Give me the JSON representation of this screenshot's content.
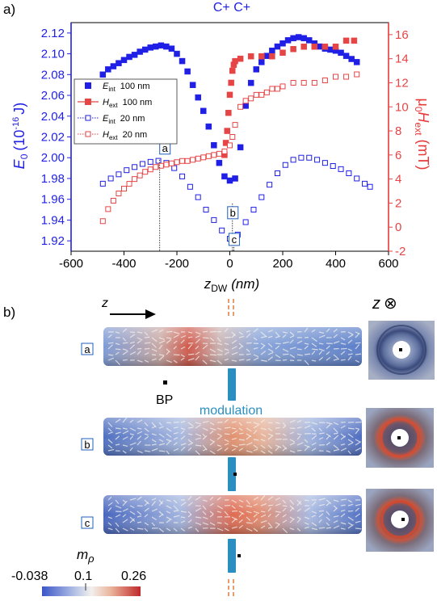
{
  "panel_a_label": "a)",
  "panel_b_label": "b)",
  "chart_data": {
    "type": "scatter",
    "title": "C+ C+",
    "xlabel_main": "z",
    "xlabel_sub": "DW",
    "xlabel_unit": "(nm)",
    "ylabel_left_main": "E",
    "ylabel_left_sub": "0",
    "ylabel_left_unit": "(10",
    "ylabel_left_exp": "-16",
    "ylabel_left_unit2": "J)",
    "ylabel_right_mu": "μ",
    "ylabel_right_sub0": "0",
    "ylabel_right_H": "H",
    "ylabel_right_sub": "ext",
    "ylabel_right_unit": "(mT)",
    "xlim": [
      -600,
      600
    ],
    "ylim_left": [
      1.91,
      2.13
    ],
    "ylim_right": [
      -2,
      17
    ],
    "xticks": [
      -600,
      -400,
      -200,
      0,
      200,
      400,
      600
    ],
    "yticks_left": [
      1.92,
      1.94,
      1.96,
      1.98,
      2.0,
      2.02,
      2.04,
      2.06,
      2.08,
      2.1,
      2.12
    ],
    "yticks_right": [
      -2,
      0,
      2,
      4,
      6,
      8,
      10,
      12,
      14,
      16
    ],
    "colors": {
      "blue": "#1f1fe6",
      "red": "#e64545",
      "axis_left": "#1f1fe6",
      "axis_right": "#e63a3a"
    },
    "legend": [
      {
        "sym": "E",
        "sub": "int",
        "size": "100 nm"
      },
      {
        "sym": "H",
        "sub": "ext",
        "size": "100 nm"
      },
      {
        "sym": "E",
        "sub": "int",
        "size": "20 nm"
      },
      {
        "sym": "H",
        "sub": "ext",
        "size": "20 nm"
      }
    ],
    "markers": [
      {
        "label": "a",
        "x": -265,
        "y": 1.998
      },
      {
        "label": "b",
        "x": 10,
        "y": 1.956
      },
      {
        "label": "c",
        "x": 15,
        "y": 1.921
      }
    ],
    "series": [
      {
        "name": "E_int 100 nm",
        "axis": "left",
        "style": "filled-square",
        "color": "blue",
        "points": [
          [
            -480,
            2.08
          ],
          [
            -460,
            2.085
          ],
          [
            -440,
            2.088
          ],
          [
            -420,
            2.091
          ],
          [
            -400,
            2.094
          ],
          [
            -380,
            2.097
          ],
          [
            -360,
            2.099
          ],
          [
            -340,
            2.102
          ],
          [
            -320,
            2.104
          ],
          [
            -300,
            2.106
          ],
          [
            -280,
            2.107
          ],
          [
            -260,
            2.108
          ],
          [
            -240,
            2.107
          ],
          [
            -220,
            2.105
          ],
          [
            -200,
            2.1
          ],
          [
            -180,
            2.093
          ],
          [
            -160,
            2.083
          ],
          [
            -140,
            2.07
          ],
          [
            -120,
            2.058
          ],
          [
            -100,
            2.045
          ],
          [
            -80,
            2.03
          ],
          [
            -60,
            2.012
          ],
          [
            -40,
            1.995
          ],
          [
            -20,
            1.982
          ],
          [
            0,
            1.978
          ],
          [
            20,
            1.98
          ],
          [
            40,
            2.01
          ],
          [
            60,
            2.05
          ],
          [
            80,
            2.072
          ],
          [
            100,
            2.085
          ],
          [
            120,
            2.092
          ],
          [
            140,
            2.098
          ],
          [
            160,
            2.103
          ],
          [
            180,
            2.107
          ],
          [
            200,
            2.11
          ],
          [
            220,
            2.113
          ],
          [
            240,
            2.115
          ],
          [
            260,
            2.116
          ],
          [
            280,
            2.115
          ],
          [
            300,
            2.113
          ],
          [
            320,
            2.11
          ],
          [
            340,
            2.107
          ],
          [
            360,
            2.105
          ],
          [
            380,
            2.104
          ],
          [
            400,
            2.103
          ],
          [
            420,
            2.101
          ],
          [
            440,
            2.098
          ],
          [
            460,
            2.095
          ],
          [
            480,
            2.092
          ]
        ]
      },
      {
        "name": "H_ext 100 nm",
        "axis": "right",
        "style": "filled-square",
        "color": "red",
        "points": [
          [
            -20,
            6.0
          ],
          [
            -15,
            7.0
          ],
          [
            -10,
            8.0
          ],
          [
            -5,
            9.5
          ],
          [
            0,
            11.0
          ],
          [
            5,
            12.0
          ],
          [
            10,
            13.0
          ],
          [
            15,
            13.5
          ],
          [
            20,
            13.8
          ],
          [
            40,
            14.0
          ],
          [
            80,
            14.2
          ],
          [
            120,
            14.2
          ],
          [
            160,
            14.2
          ],
          [
            200,
            14.5
          ],
          [
            240,
            14.8
          ],
          [
            280,
            15.0
          ],
          [
            320,
            15.0
          ],
          [
            360,
            15.0
          ],
          [
            400,
            15.0
          ],
          [
            440,
            15.5
          ],
          [
            470,
            15.5
          ]
        ]
      },
      {
        "name": "E_int 20 nm",
        "axis": "left",
        "style": "open-square",
        "color": "blue",
        "points": [
          [
            -480,
            1.975
          ],
          [
            -450,
            1.98
          ],
          [
            -420,
            1.984
          ],
          [
            -390,
            1.988
          ],
          [
            -360,
            1.991
          ],
          [
            -330,
            1.994
          ],
          [
            -300,
            1.996
          ],
          [
            -270,
            1.997
          ],
          [
            -240,
            1.995
          ],
          [
            -210,
            1.99
          ],
          [
            -180,
            1.982
          ],
          [
            -150,
            1.972
          ],
          [
            -120,
            1.962
          ],
          [
            -90,
            1.95
          ],
          [
            -60,
            1.94
          ],
          [
            -30,
            1.93
          ],
          [
            0,
            1.922
          ],
          [
            15,
            1.921
          ],
          [
            30,
            1.926
          ],
          [
            60,
            1.938
          ],
          [
            90,
            1.95
          ],
          [
            120,
            1.962
          ],
          [
            150,
            1.974
          ],
          [
            180,
            1.985
          ],
          [
            210,
            1.993
          ],
          [
            240,
            1.998
          ],
          [
            270,
            2.0
          ],
          [
            300,
            2.0
          ],
          [
            330,
            1.998
          ],
          [
            360,
            1.995
          ],
          [
            390,
            1.992
          ],
          [
            420,
            1.989
          ],
          [
            450,
            1.985
          ],
          [
            480,
            1.98
          ],
          [
            510,
            1.975
          ],
          [
            530,
            1.972
          ]
        ]
      },
      {
        "name": "H_ext 20 nm",
        "axis": "right",
        "style": "open-square",
        "color": "red",
        "points": [
          [
            -480,
            0.5
          ],
          [
            -460,
            1.5
          ],
          [
            -440,
            2.2
          ],
          [
            -420,
            2.8
          ],
          [
            -400,
            3.2
          ],
          [
            -380,
            3.6
          ],
          [
            -360,
            4.0
          ],
          [
            -340,
            4.3
          ],
          [
            -320,
            4.6
          ],
          [
            -300,
            4.8
          ],
          [
            -280,
            5.0
          ],
          [
            -260,
            5.1
          ],
          [
            -240,
            5.2
          ],
          [
            -220,
            5.3
          ],
          [
            -200,
            5.4
          ],
          [
            -180,
            5.5
          ],
          [
            -160,
            5.5
          ],
          [
            -140,
            5.6
          ],
          [
            -120,
            5.7
          ],
          [
            -100,
            5.8
          ],
          [
            -80,
            5.9
          ],
          [
            -60,
            6.0
          ],
          [
            -40,
            6.1
          ],
          [
            -20,
            6.3
          ],
          [
            0,
            6.8
          ],
          [
            10,
            7.5
          ],
          [
            20,
            8.5
          ],
          [
            40,
            10.0
          ],
          [
            60,
            10.5
          ],
          [
            80,
            10.7
          ],
          [
            100,
            11.0
          ],
          [
            120,
            11.0
          ],
          [
            140,
            11.2
          ],
          [
            160,
            11.5
          ],
          [
            180,
            11.5
          ],
          [
            200,
            11.7
          ],
          [
            240,
            12.0
          ],
          [
            280,
            12.0
          ],
          [
            320,
            12.0
          ],
          [
            360,
            12.2
          ],
          [
            400,
            12.5
          ],
          [
            440,
            12.5
          ],
          [
            480,
            12.7
          ]
        ]
      }
    ]
  },
  "panel_b": {
    "z_label": "z",
    "z_cross_symbol": "⊗",
    "bp_label": "BP",
    "modulation_label": "modulation",
    "row_labels": [
      "a",
      "b",
      "c"
    ],
    "colorbar_label_main": "m",
    "colorbar_label_sub": "ρ",
    "colorbar_ticks": [
      "-0.038",
      "0.1",
      "0.26"
    ],
    "colors": {
      "modulation": "#2a8fc0",
      "dashed": "#e07a3a"
    }
  }
}
